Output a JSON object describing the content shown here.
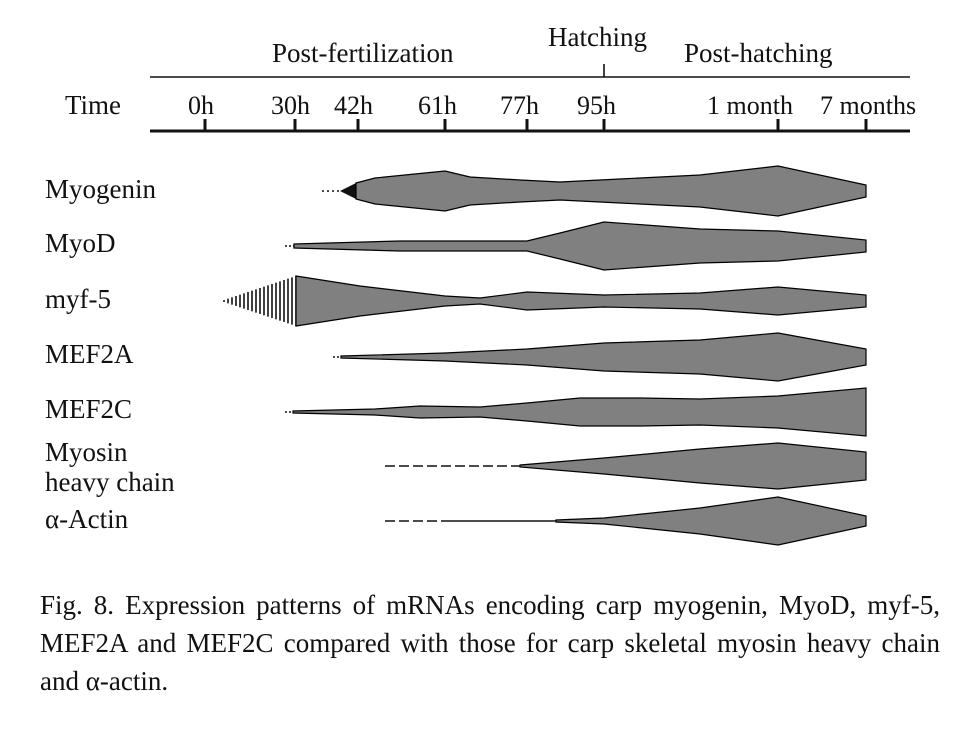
{
  "timeline": {
    "label": "Time",
    "phases": {
      "post_fertilization": "Post-fertilization",
      "hatching": "Hatching",
      "post_hatching": "Post-hatching"
    },
    "ticks": [
      "0h",
      "30h",
      "42h",
      "61h",
      "77h",
      "95h",
      "1 month",
      "7 months"
    ]
  },
  "genes": [
    {
      "label": "Myogenin"
    },
    {
      "label": "MyoD"
    },
    {
      "label": "myf-5"
    },
    {
      "label": "MEF2A"
    },
    {
      "label": "MEF2C"
    },
    {
      "label": "Myosin\nheavy chain"
    },
    {
      "label": "α-Actin"
    }
  ],
  "colors": {
    "shape_fill": "#808080",
    "outline": "#000000",
    "line": "#111111"
  },
  "caption": "Fig. 8. Expression patterns of mRNAs encoding carp myogenin, MyoD, myf-5, MEF2A and MEF2C compared with those for carp skeletal myosin heavy chain and α-actin."
}
